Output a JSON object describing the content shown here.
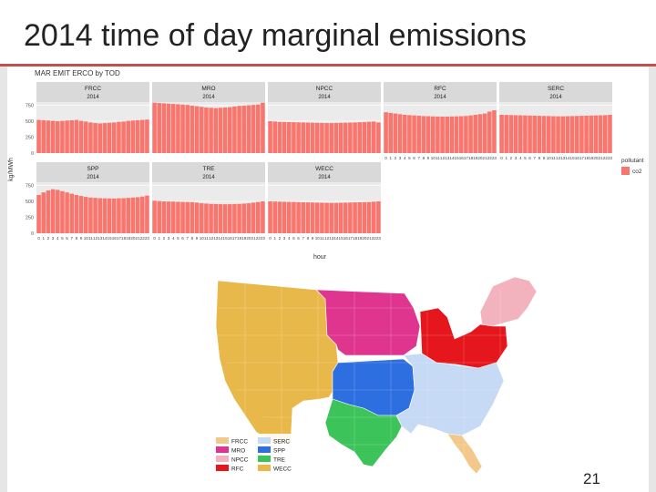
{
  "slide": {
    "title": "2014 time of day marginal emissions",
    "page_number": "21"
  },
  "chart_data": {
    "type": "bar",
    "title": "MAR EMIT ERCO by TOD",
    "xlabel": "hour",
    "ylabel": "kg/MWh",
    "legend": {
      "title": "pollutant",
      "entries": [
        "co2"
      ],
      "color": "#f8766d",
      "placement": "right"
    },
    "hours": [
      0,
      1,
      2,
      3,
      4,
      5,
      6,
      7,
      8,
      9,
      10,
      11,
      12,
      13,
      14,
      15,
      16,
      17,
      18,
      19,
      20,
      21,
      22,
      23
    ],
    "x_tick_labels": [
      "0",
      "1",
      "2",
      "3",
      "4",
      "5",
      "6",
      "7",
      "8",
      "9",
      "10",
      "11",
      "12",
      "13",
      "14",
      "15",
      "16",
      "17",
      "18",
      "19",
      "20",
      "21",
      "22",
      "23"
    ],
    "grid": true,
    "row_axes": [
      {
        "ylim": [
          0,
          800
        ],
        "ticks": [
          0,
          250,
          500,
          750
        ],
        "tick_labels": [
          "0",
          "250",
          "500",
          "750"
        ]
      },
      {
        "ylim": [
          0,
          800
        ],
        "ticks": [
          0,
          250,
          500,
          750
        ],
        "tick_labels": [
          "0",
          "250",
          "500",
          "750"
        ]
      }
    ],
    "panels": [
      {
        "name": "FRCC",
        "year": "2014",
        "values": [
          520,
          515,
          510,
          505,
          500,
          505,
          510,
          515,
          520,
          505,
          495,
          480,
          470,
          465,
          470,
          475,
          480,
          490,
          495,
          505,
          510,
          515,
          520,
          525
        ]
      },
      {
        "name": "MRO",
        "year": "2014",
        "values": [
          790,
          785,
          780,
          775,
          770,
          765,
          760,
          755,
          745,
          735,
          725,
          715,
          710,
          705,
          710,
          715,
          720,
          730,
          740,
          745,
          750,
          755,
          760,
          790
        ]
      },
      {
        "name": "NPCC",
        "year": "2014",
        "values": [
          500,
          495,
          490,
          488,
          486,
          484,
          482,
          480,
          478,
          476,
          474,
          472,
          470,
          470,
          472,
          474,
          476,
          478,
          480,
          484,
          488,
          492,
          495,
          480
        ]
      },
      {
        "name": "RFC",
        "year": "2014",
        "values": [
          640,
          630,
          620,
          610,
          600,
          595,
          590,
          585,
          580,
          578,
          575,
          573,
          572,
          572,
          574,
          576,
          578,
          582,
          590,
          600,
          610,
          620,
          650,
          670
        ]
      },
      {
        "name": "SERC",
        "year": "2014",
        "values": [
          600,
          598,
          596,
          594,
          592,
          590,
          588,
          586,
          584,
          582,
          580,
          578,
          576,
          576,
          578,
          580,
          582,
          584,
          586,
          588,
          590,
          592,
          594,
          600
        ]
      },
      {
        "name": "SPP",
        "year": "2014",
        "values": [
          600,
          640,
          670,
          690,
          680,
          660,
          640,
          620,
          600,
          585,
          570,
          560,
          555,
          550,
          548,
          546,
          545,
          548,
          550,
          555,
          560,
          565,
          575,
          590
        ]
      },
      {
        "name": "TRE",
        "year": "2014",
        "values": [
          510,
          505,
          500,
          498,
          496,
          494,
          492,
          490,
          488,
          480,
          470,
          465,
          460,
          458,
          456,
          455,
          456,
          458,
          460,
          465,
          470,
          480,
          490,
          500
        ]
      },
      {
        "name": "WECC",
        "year": "2014",
        "values": [
          500,
          498,
          496,
          494,
          492,
          490,
          488,
          486,
          484,
          482,
          480,
          478,
          476,
          475,
          476,
          478,
          480,
          482,
          484,
          486,
          488,
          490,
          495,
          500
        ]
      }
    ]
  },
  "map": {
    "legend_regions": [
      {
        "code": "FRCC",
        "color": "#f3c98b"
      },
      {
        "code": "SERC",
        "color": "#c6d9f5"
      },
      {
        "code": "MRO",
        "color": "#e0358f"
      },
      {
        "code": "SPP",
        "color": "#2d6fe0"
      },
      {
        "code": "NPCC",
        "color": "#f3b3be"
      },
      {
        "code": "TRE",
        "color": "#3cc45a"
      },
      {
        "code": "RFC",
        "color": "#e5161c"
      },
      {
        "code": "WECC",
        "color": "#e8b84a"
      }
    ]
  }
}
